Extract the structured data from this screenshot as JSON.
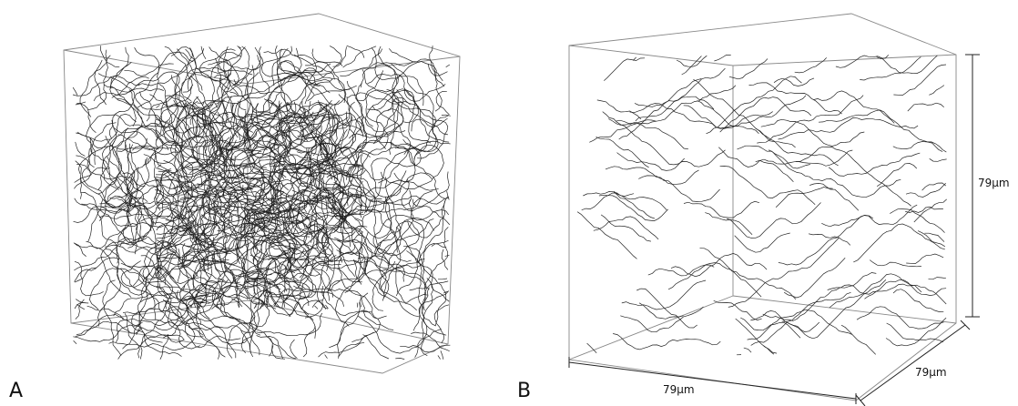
{
  "panels": [
    {
      "label": "A"
    },
    {
      "label": "B",
      "dimensions": {
        "height": "79μm",
        "width": "79μm",
        "depth": "79μm"
      }
    }
  ]
}
